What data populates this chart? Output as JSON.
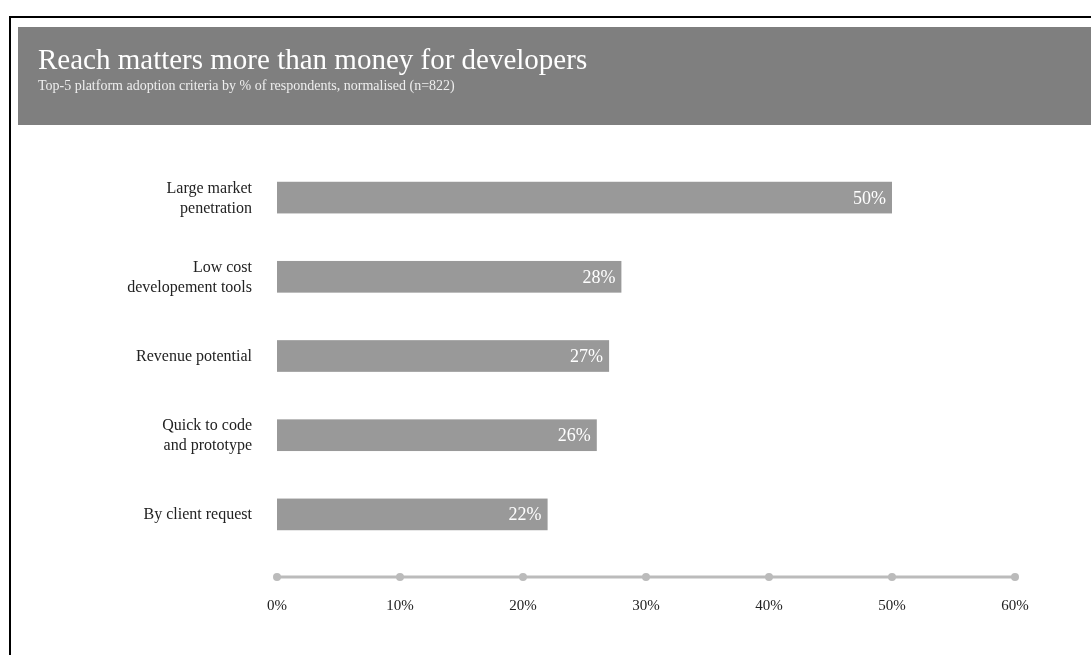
{
  "chart_data": {
    "type": "bar",
    "orientation": "horizontal",
    "title": "Reach matters more than money for developers",
    "subtitle": "Top-5 platform adoption criteria by % of respondents, normalised (n=822)",
    "categories": [
      "Large market penetration",
      "Low cost developement tools",
      "Revenue potential",
      "Quick to code and prototype",
      "By client request"
    ],
    "values": [
      50,
      28,
      27,
      26,
      22
    ],
    "value_labels": [
      "50%",
      "28%",
      "27%",
      "26%",
      "22%"
    ],
    "color": "#999999",
    "xlim": [
      0,
      60
    ],
    "xticks": [
      {
        "value": 0,
        "label": "0%"
      },
      {
        "value": 10,
        "label": "10%"
      },
      {
        "value": 20,
        "label": "20%"
      },
      {
        "value": 30,
        "label": "30%"
      },
      {
        "value": 40,
        "label": "40%"
      },
      {
        "value": 50,
        "label": "50%"
      },
      {
        "value": 60,
        "label": "60%"
      }
    ],
    "grid": false
  }
}
